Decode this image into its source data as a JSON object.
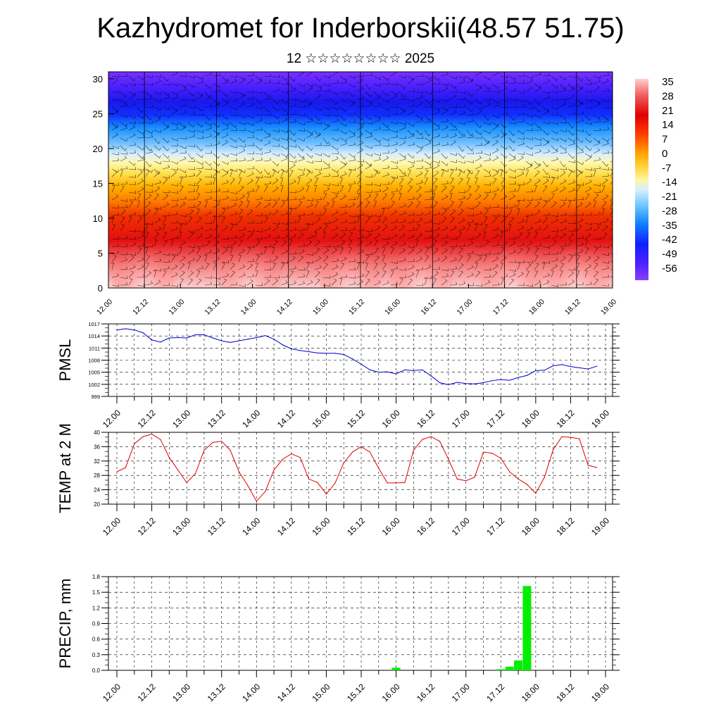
{
  "title": "Kazhydromet for Inderborskii(48.57 51.75)",
  "subtitle": "12 ☆☆☆☆☆☆☆☆ 2025",
  "colors": {
    "pmsl_line": "#0000cc",
    "temp_line": "#dd0000",
    "precip_bar": "#00ee00",
    "colorbar": [
      "#ffd0d0",
      "#ff8080",
      "#ee2020",
      "#e00000",
      "#ff5000",
      "#ff9a00",
      "#ffd030",
      "#fff080",
      "#d8f0ff",
      "#70c8ff",
      "#1090ff",
      "#2040ff",
      "#6020ff",
      "#8040ff"
    ]
  },
  "chart_data": [
    {
      "type": "heatmap",
      "title": "",
      "ylim": [
        0,
        31
      ],
      "y_ticks": [
        "0",
        "5",
        "10",
        "15",
        "20",
        "25",
        "30"
      ],
      "x_ticks": [
        "12.00",
        "12.12",
        "13.00",
        "13.12",
        "14.00",
        "14.12",
        "15.00",
        "15.12",
        "16.00",
        "16.12",
        "17.00",
        "17.12",
        "18.00",
        "18.12",
        "19.00"
      ],
      "colorbar_labels": [
        "35",
        "28",
        "21",
        "14",
        "7",
        "0",
        "-7",
        "-14",
        "-21",
        "-28",
        "-35",
        "-42",
        "-49",
        "-56"
      ],
      "overlay": "wind barbs"
    },
    {
      "type": "line",
      "ylabel": "PMSL",
      "ylim": [
        999,
        1017
      ],
      "y_ticks": [
        "1017",
        "1014",
        "1011",
        "1008",
        "1005",
        "1002",
        "999"
      ],
      "x_ticks": [
        "12.00",
        "12.12",
        "13.00",
        "13.12",
        "14.00",
        "14.12",
        "15.00",
        "15.12",
        "16.00",
        "16.12",
        "17.00",
        "17.12",
        "18.00",
        "18.12",
        "19.00"
      ],
      "x_hours": [
        0,
        3,
        6,
        9,
        12,
        15,
        18,
        21,
        24,
        27,
        30,
        33,
        36,
        39,
        42,
        45,
        48,
        51,
        54,
        57,
        60,
        63,
        66,
        69,
        72,
        75,
        78,
        81,
        84,
        87,
        90,
        93,
        96,
        99,
        102,
        105,
        108,
        111,
        114,
        117,
        120,
        123,
        126,
        129,
        132,
        135,
        138,
        141,
        144,
        147,
        150,
        153,
        156,
        159,
        162,
        165
      ],
      "series": [
        {
          "values": [
            1015.5,
            1015.8,
            1015.5,
            1014.8,
            1013.0,
            1012.5,
            1013.5,
            1013.6,
            1013.5,
            1014.3,
            1014.3,
            1013.5,
            1012.8,
            1012.4,
            1012.8,
            1013.2,
            1013.6,
            1014.1,
            1013.2,
            1011.8,
            1010.8,
            1010.4,
            1010.1,
            1009.8,
            1009.7,
            1009.7,
            1009.4,
            1008.3,
            1007.0,
            1005.6,
            1005.0,
            1005.1,
            1004.6,
            1005.6,
            1005.4,
            1005.6,
            1004.1,
            1002.4,
            1001.9,
            1002.5,
            1002.2,
            1002.1,
            1002.4,
            1002.9,
            1003.2,
            1003.0,
            1003.7,
            1004.2,
            1005.4,
            1005.5,
            1006.6,
            1006.9,
            1006.4,
            1006.1,
            1005.8,
            1006.5
          ]
        }
      ]
    },
    {
      "type": "line",
      "ylabel": "TEMP at 2 M",
      "ylim": [
        20,
        40
      ],
      "y_ticks": [
        "40",
        "36",
        "32",
        "28",
        "24",
        "20"
      ],
      "x_ticks": [
        "12.00",
        "12.12",
        "13.00",
        "13.12",
        "14.00",
        "14.12",
        "15.00",
        "15.12",
        "16.00",
        "16.12",
        "17.00",
        "17.12",
        "18.00",
        "18.12",
        "19.00"
      ],
      "x_hours": [
        0,
        3,
        6,
        9,
        12,
        15,
        18,
        21,
        24,
        27,
        30,
        33,
        36,
        39,
        42,
        45,
        48,
        51,
        54,
        57,
        60,
        63,
        66,
        69,
        72,
        75,
        78,
        81,
        84,
        87,
        90,
        93,
        96,
        99,
        102,
        105,
        108,
        111,
        114,
        117,
        120,
        123,
        126,
        129,
        132,
        135,
        138,
        141,
        144,
        147,
        150,
        153,
        156,
        159,
        162,
        165
      ],
      "series": [
        {
          "values": [
            29.0,
            30.2,
            36.8,
            38.8,
            39.5,
            38.0,
            33.0,
            29.5,
            26.0,
            28.5,
            35.0,
            37.2,
            37.5,
            35.0,
            29.0,
            25.2,
            20.8,
            23.5,
            29.5,
            32.5,
            34.0,
            33.0,
            27.0,
            26.0,
            22.8,
            25.8,
            31.5,
            34.5,
            36.0,
            34.5,
            30.0,
            25.9,
            25.9,
            26.0,
            35.0,
            38.0,
            38.8,
            37.5,
            32.5,
            27.0,
            26.5,
            27.5,
            34.5,
            34.2,
            32.8,
            29.0,
            27.0,
            25.5,
            23.0,
            27.5,
            35.2,
            38.8,
            38.6,
            38.2,
            30.8,
            30.2
          ]
        }
      ]
    },
    {
      "type": "bar",
      "ylabel": "PRECIP, mm",
      "ylim": [
        0,
        1.8
      ],
      "y_ticks": [
        "1.8",
        "1.5",
        "1.2",
        "0.9",
        "0.6",
        "0.3",
        "0.0"
      ],
      "x_ticks": [
        "12.00",
        "12.12",
        "13.00",
        "13.12",
        "14.00",
        "14.12",
        "15.00",
        "15.12",
        "16.00",
        "16.12",
        "17.00",
        "17.12",
        "18.00",
        "18.12",
        "19.00"
      ],
      "x_hours": [
        96,
        132,
        135,
        138,
        141
      ],
      "values": [
        0.05,
        0.02,
        0.07,
        0.19,
        1.62
      ]
    }
  ]
}
